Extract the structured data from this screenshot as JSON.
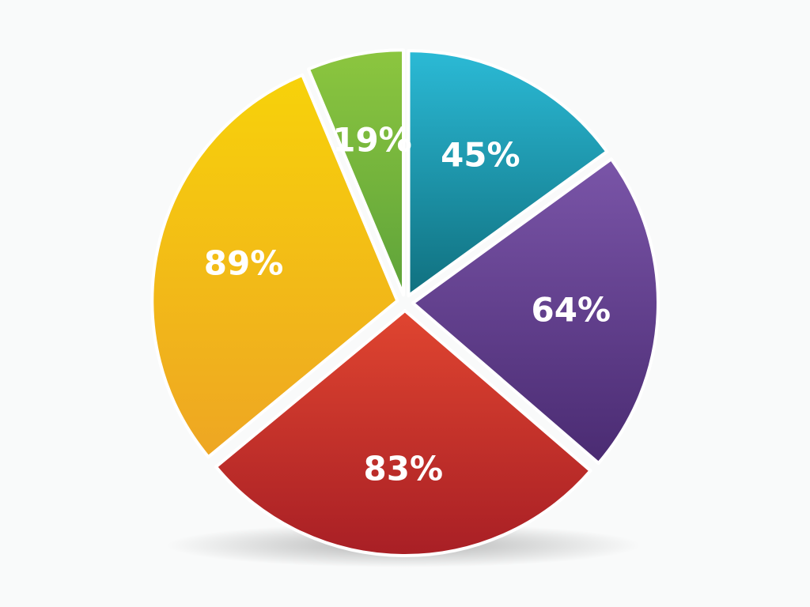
{
  "chart_data": {
    "type": "pie",
    "labels": [
      "45%",
      "64%",
      "83%",
      "89%",
      "19%"
    ],
    "values": [
      45,
      64,
      83,
      89,
      19
    ],
    "colors": [
      "#1f9ab5",
      "#5c3a8a",
      "#c42a2a",
      "#f2b50f",
      "#6fb53a"
    ],
    "start_angle_deg": 0,
    "clockwise": true,
    "legend": "none",
    "title": "",
    "exploded": true
  }
}
